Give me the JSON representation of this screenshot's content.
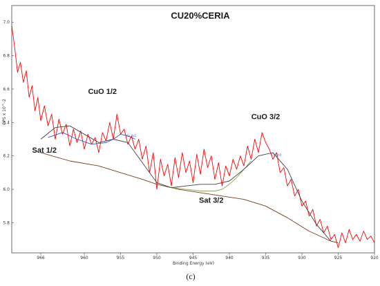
{
  "caption": "(c)",
  "chart_data": {
    "type": "line",
    "title": "CU20%CERIA",
    "xlabel": "Binding Energy (eV)",
    "ylabel": "CPS x 10^-2",
    "x_reversed": true,
    "xlim": [
      970,
      920
    ],
    "ylim": [
      5.62,
      7.1
    ],
    "x_ticks": [
      966,
      960,
      955,
      950,
      945,
      940,
      935,
      930,
      925,
      920
    ],
    "y_ticks": [
      5.8,
      6.0,
      6.2,
      6.4,
      6.6,
      6.8,
      7.0
    ],
    "y_tick_labels": [
      "5.8",
      "6.0",
      "6.2",
      "6.4",
      "6.6",
      "6.8",
      "7.0"
    ],
    "annotations": [
      {
        "text": "CuO 1/2",
        "x": 957.5,
        "y": 6.57
      },
      {
        "text": "CuO 3/2",
        "x": 935,
        "y": 6.42
      },
      {
        "text": "Sat 1/2",
        "x": 965.5,
        "y": 6.22
      },
      {
        "text": "Sat 3/2",
        "x": 942.5,
        "y": 5.92
      }
    ],
    "peak_tags": [
      {
        "text": "Cu 2p1",
        "x": 953.5,
        "y": 6.315
      },
      {
        "text": "Cu 2p3",
        "x": 933.5,
        "y": 6.2
      }
    ],
    "series": [
      {
        "color": "#ff0000",
        "x": [
          970,
          969.6,
          969.2,
          968.8,
          968.4,
          968,
          967.6,
          967.2,
          966.8,
          966.4,
          966,
          965.5,
          965,
          964.5,
          964,
          963.5,
          963,
          962.5,
          962,
          961.5,
          961,
          960.5,
          960,
          959.5,
          959,
          958.5,
          958,
          957.5,
          957,
          956.5,
          956,
          955.5,
          955,
          954.5,
          954,
          953.5,
          953,
          952.5,
          952,
          951.5,
          951,
          950.5,
          950,
          949.5,
          949,
          948.5,
          948,
          947.5,
          947,
          946.5,
          946,
          945.5,
          945,
          944.5,
          944,
          943.5,
          943,
          942.5,
          942,
          941.5,
          941,
          940.5,
          940,
          939.5,
          939,
          938.5,
          938,
          937.5,
          937,
          936.5,
          936,
          935.5,
          935,
          934.5,
          934,
          933.5,
          933,
          932.5,
          932,
          931.5,
          931,
          930.5,
          930,
          929.5,
          929,
          928.5,
          928,
          927.5,
          927,
          926.5,
          926,
          925.5,
          925,
          924.5,
          924,
          923.5,
          923,
          922.5,
          922,
          921.5,
          921,
          920.5,
          920
        ],
        "y": [
          6.98,
          6.85,
          6.7,
          6.76,
          6.64,
          6.71,
          6.55,
          6.62,
          6.47,
          6.55,
          6.41,
          6.5,
          6.38,
          6.45,
          6.3,
          6.42,
          6.33,
          6.39,
          6.26,
          6.36,
          6.28,
          6.35,
          6.24,
          6.33,
          6.27,
          6.31,
          6.22,
          6.34,
          6.29,
          6.4,
          6.3,
          6.45,
          6.33,
          6.36,
          6.27,
          6.32,
          6.24,
          6.3,
          6.18,
          6.26,
          6.1,
          6.22,
          6.0,
          6.18,
          6.08,
          6.15,
          6.02,
          6.19,
          6.07,
          6.22,
          6.1,
          6.17,
          6.04,
          6.21,
          6.09,
          6.24,
          6.13,
          6.2,
          6.06,
          6.16,
          6.02,
          6.14,
          6.08,
          6.18,
          6.12,
          6.2,
          6.14,
          6.26,
          6.18,
          6.3,
          6.22,
          6.34,
          6.28,
          6.24,
          6.18,
          6.22,
          6.1,
          6.13,
          6.02,
          6.06,
          5.96,
          6.0,
          5.9,
          5.93,
          5.84,
          5.88,
          5.78,
          5.82,
          5.74,
          5.78,
          5.7,
          5.73,
          5.65,
          5.74,
          5.68,
          5.76,
          5.7,
          5.73,
          5.69,
          5.75,
          5.7,
          5.72,
          5.68
        ]
      },
      {
        "color": "#7a3a1a",
        "x": [
          966,
          962,
          958,
          955,
          952,
          950,
          947,
          944,
          941,
          938,
          935,
          932,
          929,
          926,
          925
        ],
        "y": [
          6.22,
          6.17,
          6.14,
          6.1,
          6.06,
          6.03,
          6.0,
          5.98,
          5.96,
          5.94,
          5.9,
          5.83,
          5.75,
          5.69,
          5.68
        ]
      },
      {
        "color": "#8aa060",
        "x": [
          948,
          946,
          944,
          942,
          941,
          940,
          939,
          938,
          937
        ],
        "y": [
          6.01,
          6.0,
          5.99,
          5.99,
          6.0,
          6.03,
          6.07,
          6.12,
          6.17
        ]
      },
      {
        "color": "#404040",
        "x": [
          966,
          964,
          962,
          960,
          958,
          956,
          954,
          952,
          950,
          948,
          946,
          944,
          942,
          940,
          938,
          936,
          934,
          932,
          930,
          928,
          926
        ],
        "y": [
          6.3,
          6.37,
          6.38,
          6.33,
          6.28,
          6.3,
          6.28,
          6.16,
          6.04,
          6.01,
          6.02,
          6.03,
          6.03,
          6.05,
          6.12,
          6.2,
          6.22,
          6.12,
          5.93,
          5.79,
          5.69
        ]
      },
      {
        "color": "#3050c0",
        "x": [
          965,
          963,
          961,
          959,
          957,
          956,
          955,
          954,
          953
        ],
        "y": [
          6.31,
          6.34,
          6.3,
          6.27,
          6.28,
          6.3,
          6.33,
          6.32,
          6.3
        ]
      }
    ]
  }
}
